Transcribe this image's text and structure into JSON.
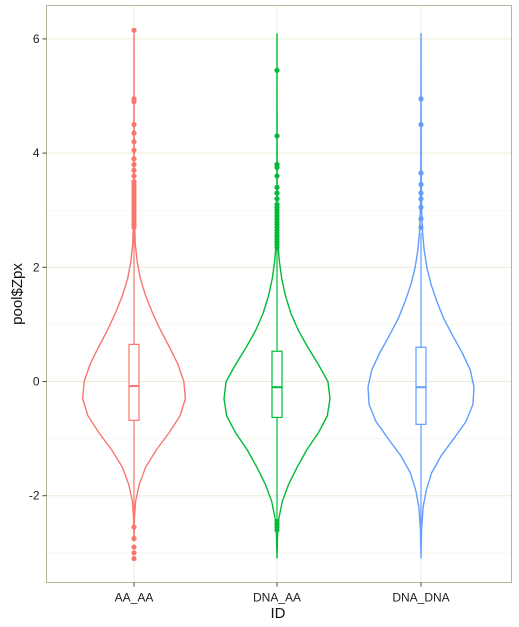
{
  "chart_data": {
    "type": "violin",
    "title": "",
    "xlabel": "ID",
    "ylabel": "pool$Zpx",
    "categories": [
      "AA_AA",
      "DNA_AA",
      "DNA_DNA"
    ],
    "ylim": [
      -3.5,
      6.5
    ],
    "yticks": [
      -2,
      0,
      2,
      4,
      6
    ],
    "ytick_labels": [
      "-2",
      "0",
      "2",
      "4",
      "6"
    ],
    "grid": true,
    "legend": "none",
    "series": [
      {
        "category": "AA_AA",
        "color": "#F8766D",
        "violin_range": [
          -2.8,
          6.1
        ],
        "density_profile": [
          [
            -2.8,
            0.0
          ],
          [
            -2.4,
            0.008
          ],
          [
            -2.1,
            0.03
          ],
          [
            -1.8,
            0.1
          ],
          [
            -1.5,
            0.22
          ],
          [
            -1.2,
            0.42
          ],
          [
            -0.9,
            0.66
          ],
          [
            -0.6,
            0.87
          ],
          [
            -0.3,
            0.97
          ],
          [
            0.0,
            0.94
          ],
          [
            0.3,
            0.83
          ],
          [
            0.6,
            0.67
          ],
          [
            0.9,
            0.5
          ],
          [
            1.2,
            0.35
          ],
          [
            1.5,
            0.22
          ],
          [
            1.8,
            0.12
          ],
          [
            2.1,
            0.06
          ],
          [
            2.4,
            0.025
          ],
          [
            2.8,
            0.008
          ],
          [
            3.5,
            0.003
          ],
          [
            6.1,
            0.0
          ]
        ],
        "box": {
          "lower": -0.68,
          "median": -0.08,
          "upper": 0.65
        },
        "whiskers": [
          -2.5,
          2.7
        ],
        "outliers": [
          -2.55,
          -2.75,
          -2.9,
          -3.0,
          -3.1,
          2.7,
          2.75,
          2.8,
          2.85,
          2.9,
          2.95,
          3.0,
          3.05,
          3.1,
          3.15,
          3.2,
          3.25,
          3.3,
          3.35,
          3.4,
          3.45,
          3.5,
          3.6,
          3.7,
          3.8,
          3.9,
          4.05,
          4.2,
          4.35,
          4.5,
          4.9,
          4.95,
          6.15
        ]
      },
      {
        "category": "DNA_AA",
        "color": "#00BA38",
        "violin_range": [
          -3.1,
          6.1
        ],
        "density_profile": [
          [
            -3.1,
            0.0
          ],
          [
            -2.7,
            0.01
          ],
          [
            -2.4,
            0.035
          ],
          [
            -2.1,
            0.1
          ],
          [
            -1.8,
            0.22
          ],
          [
            -1.5,
            0.38
          ],
          [
            -1.2,
            0.56
          ],
          [
            -0.9,
            0.78
          ],
          [
            -0.6,
            0.95
          ],
          [
            -0.3,
            1.0
          ],
          [
            0.0,
            0.96
          ],
          [
            0.3,
            0.78
          ],
          [
            0.6,
            0.58
          ],
          [
            0.9,
            0.4
          ],
          [
            1.2,
            0.26
          ],
          [
            1.5,
            0.16
          ],
          [
            1.8,
            0.09
          ],
          [
            2.1,
            0.045
          ],
          [
            2.4,
            0.018
          ],
          [
            2.8,
            0.006
          ],
          [
            3.5,
            0.002
          ],
          [
            6.1,
            0.0
          ]
        ],
        "box": {
          "lower": -0.63,
          "median": -0.1,
          "upper": 0.53
        },
        "whiskers": [
          -2.4,
          2.35
        ],
        "outliers": [
          -2.45,
          -2.5,
          -2.55,
          -2.6,
          2.35,
          2.4,
          2.45,
          2.5,
          2.55,
          2.6,
          2.65,
          2.7,
          2.75,
          2.8,
          2.85,
          2.9,
          2.95,
          3.0,
          3.05,
          3.1,
          3.2,
          3.3,
          3.4,
          3.6,
          3.75,
          3.8,
          4.3,
          5.45
        ]
      },
      {
        "category": "DNA_DNA",
        "color": "#619CFF",
        "violin_range": [
          -3.1,
          6.1
        ],
        "density_profile": [
          [
            -3.1,
            0.0
          ],
          [
            -2.6,
            0.01
          ],
          [
            -2.2,
            0.04
          ],
          [
            -1.9,
            0.1
          ],
          [
            -1.6,
            0.2
          ],
          [
            -1.3,
            0.38
          ],
          [
            -1.0,
            0.62
          ],
          [
            -0.7,
            0.85
          ],
          [
            -0.4,
            0.98
          ],
          [
            -0.1,
            1.0
          ],
          [
            0.2,
            0.93
          ],
          [
            0.5,
            0.78
          ],
          [
            0.8,
            0.6
          ],
          [
            1.1,
            0.43
          ],
          [
            1.4,
            0.3
          ],
          [
            1.7,
            0.19
          ],
          [
            2.0,
            0.11
          ],
          [
            2.3,
            0.06
          ],
          [
            2.6,
            0.03
          ],
          [
            3.0,
            0.012
          ],
          [
            3.6,
            0.004
          ],
          [
            6.1,
            0.0
          ]
        ],
        "box": {
          "lower": -0.75,
          "median": -0.1,
          "upper": 0.6
        },
        "whiskers": [
          -2.5,
          2.6
        ],
        "outliers": [
          2.7,
          2.85,
          3.05,
          3.2,
          3.3,
          3.45,
          3.65,
          4.5,
          4.95
        ]
      }
    ]
  }
}
